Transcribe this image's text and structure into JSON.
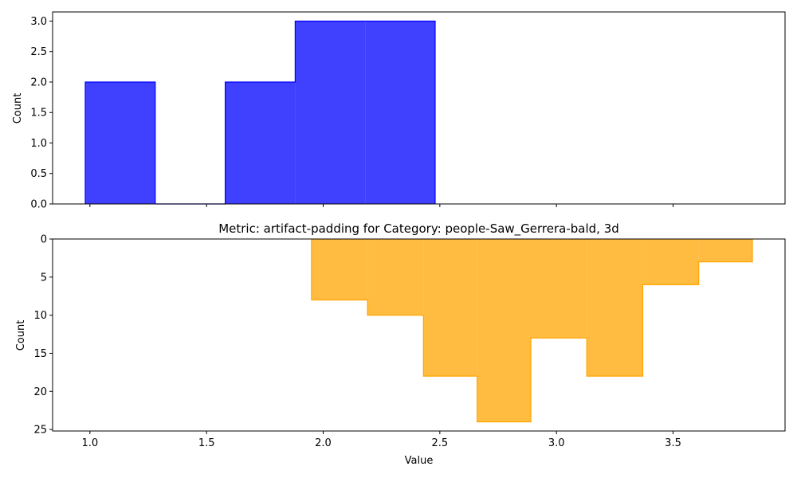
{
  "chart_data": [
    {
      "type": "histogram",
      "panel": "top",
      "title": "",
      "xlabel": "",
      "ylabel": "Count",
      "color": "#0000ff",
      "xlim": [
        0.84,
        3.98
      ],
      "ylim": [
        0,
        3.15
      ],
      "y_inverted": false,
      "x_ticks": [
        1.0,
        1.5,
        2.0,
        2.5,
        3.0,
        3.5
      ],
      "x_tick_labels_visible": false,
      "y_ticks": [
        0.0,
        0.5,
        1.0,
        1.5,
        2.0,
        2.5,
        3.0
      ],
      "y_tick_labels": [
        "0.0",
        "0.5",
        "1.0",
        "1.5",
        "2.0",
        "2.5",
        "3.0"
      ],
      "bins": [
        {
          "x0": 0.98,
          "x1": 1.28,
          "count": 2
        },
        {
          "x0": 1.28,
          "x1": 1.58,
          "count": 0
        },
        {
          "x0": 1.58,
          "x1": 1.88,
          "count": 2
        },
        {
          "x0": 1.88,
          "x1": 2.18,
          "count": 3
        },
        {
          "x0": 2.18,
          "x1": 2.48,
          "count": 3
        }
      ]
    },
    {
      "type": "histogram",
      "panel": "bottom",
      "title": "Metric: artifact-padding for Category: people-Saw_Gerrera-bald, 3d",
      "xlabel": "Value",
      "ylabel": "Count",
      "color": "#ffa500",
      "xlim": [
        0.84,
        3.98
      ],
      "ylim": [
        0,
        25.2
      ],
      "y_inverted": true,
      "x_ticks": [
        1.0,
        1.5,
        2.0,
        2.5,
        3.0,
        3.5
      ],
      "x_tick_labels": [
        "1.0",
        "1.5",
        "2.0",
        "2.5",
        "3.0",
        "3.5"
      ],
      "y_ticks": [
        0,
        5,
        10,
        15,
        20,
        25
      ],
      "y_tick_labels": [
        "0",
        "5",
        "10",
        "15",
        "20",
        "25"
      ],
      "bins": [
        {
          "x0": 1.95,
          "x1": 2.19,
          "count": 8
        },
        {
          "x0": 2.19,
          "x1": 2.43,
          "count": 10
        },
        {
          "x0": 2.43,
          "x1": 2.66,
          "count": 18
        },
        {
          "x0": 2.66,
          "x1": 2.89,
          "count": 24
        },
        {
          "x0": 2.89,
          "x1": 3.13,
          "count": 13
        },
        {
          "x0": 3.13,
          "x1": 3.37,
          "count": 18
        },
        {
          "x0": 3.37,
          "x1": 3.61,
          "count": 6
        },
        {
          "x0": 3.61,
          "x1": 3.84,
          "count": 3
        }
      ]
    }
  ]
}
